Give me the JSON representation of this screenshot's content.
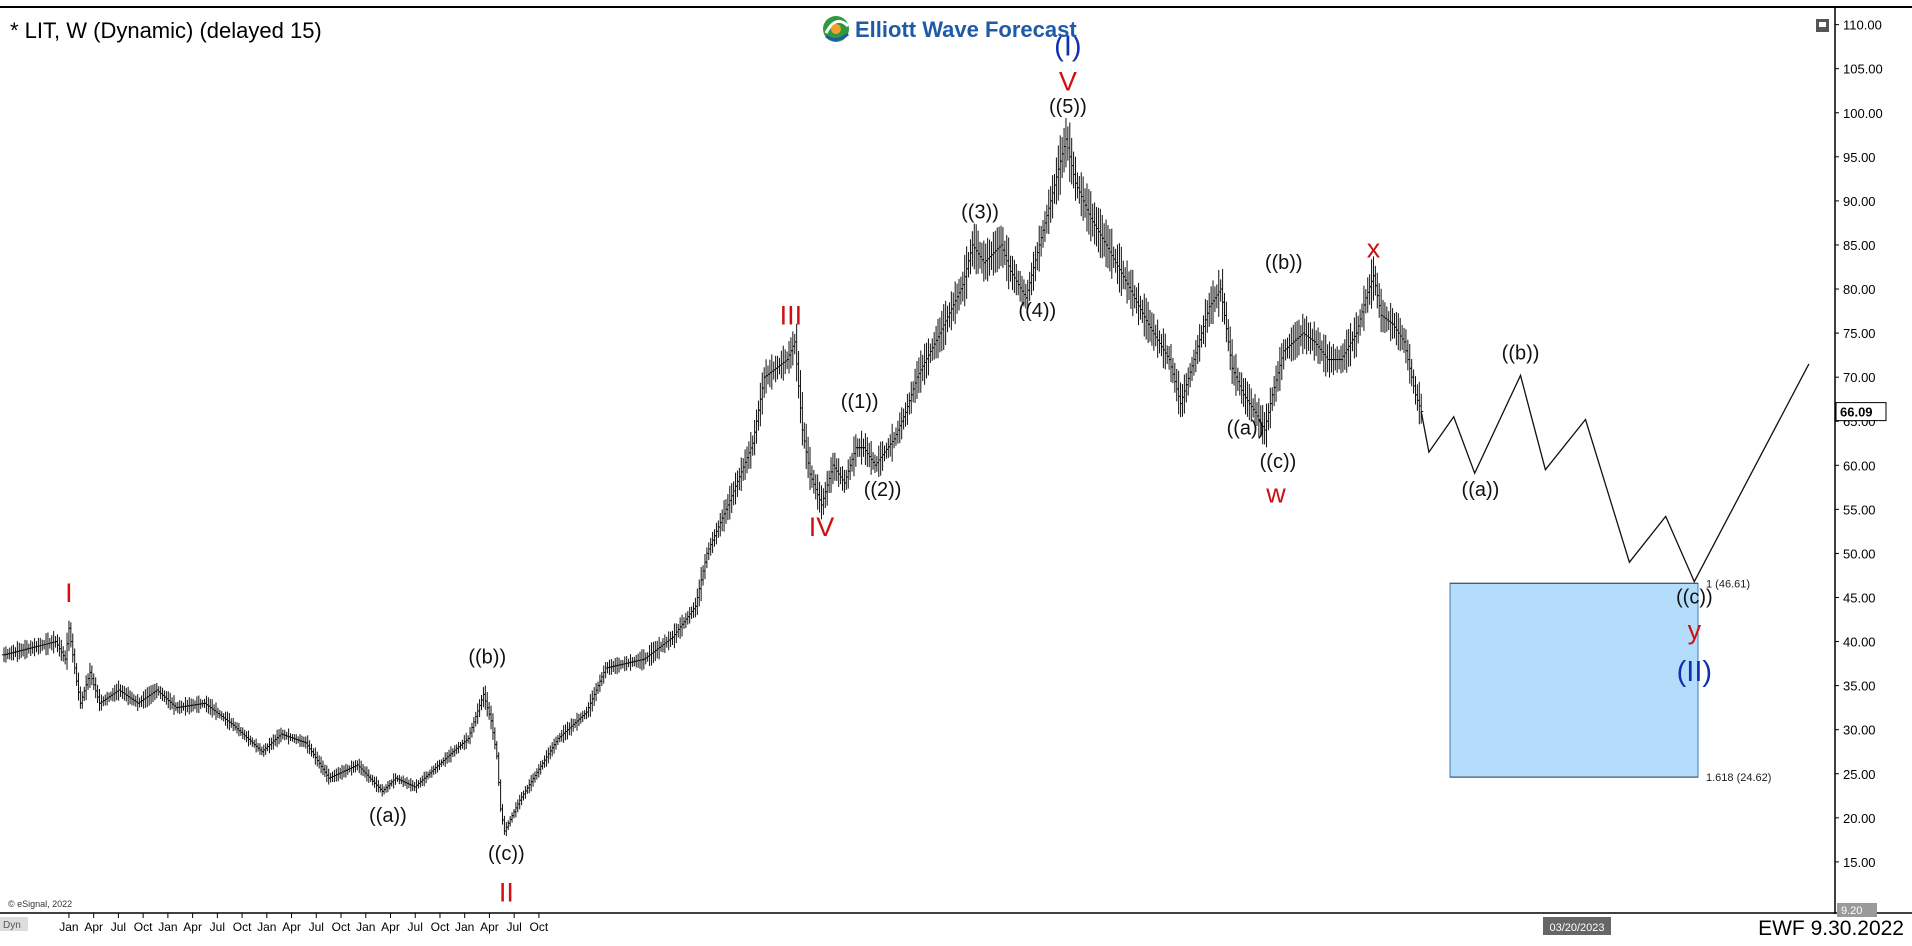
{
  "header": {
    "symbol_title": "* LIT, W (Dynamic) (delayed 15)",
    "brand": "Elliott Wave Forecast",
    "brand_colors": {
      "green": "#2e9a3c",
      "blue": "#1f5aa6",
      "orange": "#f0a030"
    },
    "collapse_icon": "window-icon"
  },
  "footer": {
    "copyright": "© eSignal, 2022",
    "signature": "EWF 9.30.2022",
    "date_box": "03/20/2023",
    "corner_label": "Dyn"
  },
  "chart_data": {
    "type": "ohlc",
    "ylim": [
      9.2,
      112
    ],
    "y_ticks": [
      "110.00",
      "105.00",
      "100.00",
      "95.00",
      "90.00",
      "85.00",
      "80.00",
      "75.00",
      "70.00",
      "65.00",
      "60.00",
      "55.00",
      "50.00",
      "45.00",
      "40.00",
      "35.00",
      "30.00",
      "25.00",
      "20.00",
      "15.00"
    ],
    "y_bottom_label": "9.20",
    "last_price": "66.09",
    "last_price_value": 66.09,
    "x_labels": [
      "Jan",
      "Apr",
      "Jul",
      "Oct",
      "Jan",
      "Apr",
      "Jul",
      "Oct",
      "Jan",
      "Apr",
      "Jul",
      "Oct",
      "Jan",
      "Apr",
      "Jul",
      "Oct",
      "Jan",
      "Apr",
      "Jul",
      "Oct"
    ],
    "price_anchors": [
      [
        0,
        38.5
      ],
      [
        18,
        39.5
      ],
      [
        27,
        40
      ],
      [
        32,
        38
      ],
      [
        34,
        41.5
      ],
      [
        38,
        35.5
      ],
      [
        40,
        33
      ],
      [
        45,
        36.5
      ],
      [
        50,
        33
      ],
      [
        60,
        34.5
      ],
      [
        70,
        33
      ],
      [
        80,
        34.5
      ],
      [
        90,
        32.5
      ],
      [
        105,
        33
      ],
      [
        120,
        30.5
      ],
      [
        135,
        27.5
      ],
      [
        145,
        29.5
      ],
      [
        158,
        28.5
      ],
      [
        170,
        24.5
      ],
      [
        185,
        26
      ],
      [
        198,
        23
      ],
      [
        205,
        24.5
      ],
      [
        215,
        23.5
      ],
      [
        235,
        27.5
      ],
      [
        243,
        29
      ],
      [
        251,
        34
      ],
      [
        255,
        31
      ],
      [
        258,
        27
      ],
      [
        260,
        21
      ],
      [
        262,
        18.5
      ],
      [
        270,
        22
      ],
      [
        290,
        29
      ],
      [
        305,
        32
      ],
      [
        315,
        37
      ],
      [
        335,
        38
      ],
      [
        350,
        40.5
      ],
      [
        362,
        44
      ],
      [
        368,
        50
      ],
      [
        380,
        56
      ],
      [
        392,
        62.5
      ],
      [
        398,
        70
      ],
      [
        410,
        72
      ],
      [
        414,
        74
      ],
      [
        418,
        64
      ],
      [
        422,
        59
      ],
      [
        428,
        55.5
      ],
      [
        434,
        60
      ],
      [
        440,
        58
      ],
      [
        446,
        62
      ],
      [
        450,
        62
      ],
      [
        456,
        60
      ],
      [
        466,
        63
      ],
      [
        472,
        66
      ],
      [
        478,
        70
      ],
      [
        490,
        75
      ],
      [
        502,
        80.5
      ],
      [
        507,
        85
      ],
      [
        513,
        83
      ],
      [
        522,
        85
      ],
      [
        527,
        82
      ],
      [
        535,
        79
      ],
      [
        542,
        85
      ],
      [
        548,
        90
      ],
      [
        553,
        94.5
      ],
      [
        556,
        97
      ],
      [
        561,
        92
      ],
      [
        569,
        88
      ],
      [
        577,
        85
      ],
      [
        587,
        81
      ],
      [
        599,
        76
      ],
      [
        610,
        72
      ],
      [
        616,
        67
      ],
      [
        623,
        72
      ],
      [
        631,
        78
      ],
      [
        637,
        80
      ],
      [
        643,
        71
      ],
      [
        649,
        68
      ],
      [
        655,
        66
      ],
      [
        660,
        64
      ],
      [
        664,
        68
      ],
      [
        670,
        73
      ],
      [
        680,
        75
      ],
      [
        686,
        74
      ],
      [
        693,
        72
      ],
      [
        700,
        72
      ],
      [
        708,
        75
      ],
      [
        713,
        79
      ],
      [
        717,
        81.5
      ],
      [
        721,
        77
      ],
      [
        727,
        76
      ],
      [
        733,
        74
      ],
      [
        736,
        71
      ],
      [
        739,
        68
      ],
      [
        742,
        66.1
      ]
    ],
    "projection": [
      [
        742,
        66.1
      ],
      [
        746,
        61.5
      ],
      [
        759,
        65.5
      ],
      [
        770,
        59.1
      ],
      [
        794,
        70.2
      ],
      [
        807,
        59.5
      ],
      [
        828,
        65.2
      ],
      [
        851,
        49
      ],
      [
        870,
        54.2
      ],
      [
        885,
        46.8
      ],
      [
        945,
        71.5
      ]
    ],
    "fib_box": {
      "top": 46.61,
      "bottom": 24.62,
      "color": "#b3ddfa",
      "border": "#3a7dbf"
    },
    "fib_labels": [
      {
        "text": "1 (46.61)",
        "value": 46.61
      },
      {
        "text": "1.618 (24.62)",
        "value": 24.62
      }
    ],
    "wave_labels": [
      {
        "name": "wave-I",
        "text": "I",
        "color": "#d01010",
        "size": 27,
        "x": 34,
        "y": 44.5
      },
      {
        "name": "wave-b-1",
        "text": "((b))",
        "color": "#111111",
        "size": 20,
        "x": 253,
        "y": 37.5
      },
      {
        "name": "wave-a-1",
        "text": "((a))",
        "color": "#111111",
        "size": 20,
        "x": 201,
        "y": 19.5
      },
      {
        "name": "wave-c-1",
        "text": "((c))",
        "color": "#111111",
        "size": 20,
        "x": 263,
        "y": 15.2
      },
      {
        "name": "wave-II",
        "text": "II",
        "color": "#d01010",
        "size": 27,
        "x": 263,
        "y": 10.5
      },
      {
        "name": "wave-III",
        "text": "III",
        "color": "#d01010",
        "size": 27,
        "x": 412,
        "y": 76
      },
      {
        "name": "wave-IV",
        "text": "IV",
        "color": "#d01010",
        "size": 27,
        "x": 428,
        "y": 52
      },
      {
        "name": "wave-1",
        "text": "((1))",
        "color": "#111111",
        "size": 20,
        "x": 448,
        "y": 66.5
      },
      {
        "name": "wave-2",
        "text": "((2))",
        "color": "#111111",
        "size": 20,
        "x": 460,
        "y": 56.5
      },
      {
        "name": "wave-3",
        "text": "((3))",
        "color": "#111111",
        "size": 20,
        "x": 511,
        "y": 88
      },
      {
        "name": "wave-4",
        "text": "((4))",
        "color": "#111111",
        "size": 20,
        "x": 541,
        "y": 76.8
      },
      {
        "name": "wave-5",
        "text": "((5))",
        "color": "#111111",
        "size": 20,
        "x": 557,
        "y": 100
      },
      {
        "name": "wave-V",
        "text": "V",
        "color": "#d01010",
        "size": 27,
        "x": 557,
        "y": 102.5
      },
      {
        "name": "wave-I-blue",
        "text": "(I)",
        "color": "#1030b0",
        "size": 29,
        "x": 557,
        "y": 106.5
      },
      {
        "name": "wave-a-2",
        "text": "((a))",
        "color": "#111111",
        "size": 20,
        "x": 650,
        "y": 63.5
      },
      {
        "name": "wave-b-2",
        "text": "((b))",
        "color": "#111111",
        "size": 20,
        "x": 670,
        "y": 82.3
      },
      {
        "name": "wave-c-2",
        "text": "((c))",
        "color": "#111111",
        "size": 20,
        "x": 667,
        "y": 59.7
      },
      {
        "name": "wave-w",
        "text": "w",
        "color": "#d01010",
        "size": 27,
        "x": 666,
        "y": 55.8
      },
      {
        "name": "wave-x",
        "text": "x",
        "color": "#d01010",
        "size": 27,
        "x": 717,
        "y": 83.6
      },
      {
        "name": "wave-a-3",
        "text": "((a))",
        "color": "#111111",
        "size": 20,
        "x": 773,
        "y": 56.5
      },
      {
        "name": "wave-b-3",
        "text": "((b))",
        "color": "#111111",
        "size": 20,
        "x": 794,
        "y": 72
      },
      {
        "name": "wave-c-3",
        "text": "((c))",
        "color": "#111111",
        "size": 20,
        "x": 885,
        "y": 44.3
      },
      {
        "name": "wave-y",
        "text": "y",
        "color": "#d01010",
        "size": 27,
        "x": 885,
        "y": 40.3
      },
      {
        "name": "wave-II-blue",
        "text": "(II)",
        "color": "#1030b0",
        "size": 29,
        "x": 885,
        "y": 35.5
      }
    ]
  }
}
